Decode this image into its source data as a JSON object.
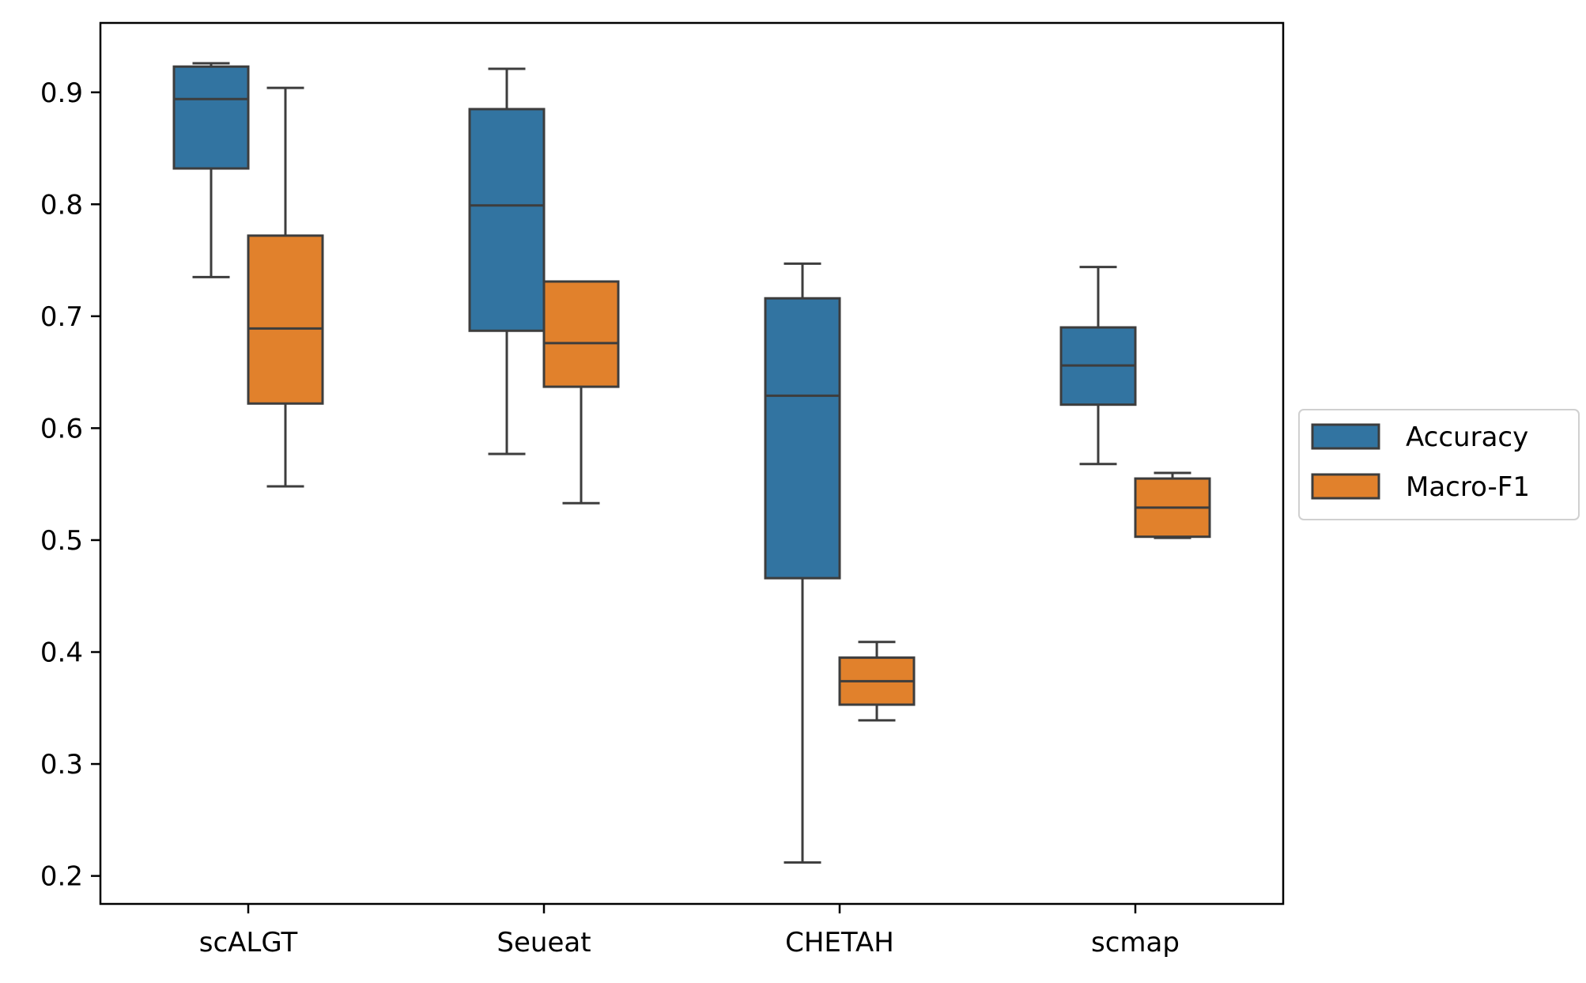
{
  "chart_data": {
    "type": "boxplot",
    "title": "",
    "xlabel": "",
    "ylabel": "",
    "ylim": [
      0.175,
      0.962
    ],
    "yticks": [
      0.2,
      0.3,
      0.4,
      0.5,
      0.6,
      0.7,
      0.8,
      0.9
    ],
    "ytick_labels": [
      "0.2",
      "0.3",
      "0.4",
      "0.5",
      "0.6",
      "0.7",
      "0.8",
      "0.9"
    ],
    "categories": [
      "scALGT",
      "Seueat",
      "CHETAH",
      "scmap"
    ],
    "grid": false,
    "legend_position": "center-right, outside plot",
    "series": [
      {
        "name": "Accuracy",
        "color": "#3274a1",
        "boxes": [
          {
            "whisker_low": 0.735,
            "q1": 0.832,
            "median": 0.894,
            "q3": 0.923,
            "whisker_high": 0.926
          },
          {
            "whisker_low": 0.577,
            "q1": 0.687,
            "median": 0.799,
            "q3": 0.885,
            "whisker_high": 0.921
          },
          {
            "whisker_low": 0.212,
            "q1": 0.466,
            "median": 0.629,
            "q3": 0.716,
            "whisker_high": 0.747
          },
          {
            "whisker_low": 0.568,
            "q1": 0.621,
            "median": 0.656,
            "q3": 0.69,
            "whisker_high": 0.744
          }
        ]
      },
      {
        "name": "Macro-F1",
        "color": "#e1812c",
        "boxes": [
          {
            "whisker_low": 0.548,
            "q1": 0.622,
            "median": 0.689,
            "q3": 0.772,
            "whisker_high": 0.904
          },
          {
            "whisker_low": 0.533,
            "q1": 0.637,
            "median": 0.676,
            "q3": 0.731,
            "whisker_high": 0.731
          },
          {
            "whisker_low": 0.339,
            "q1": 0.353,
            "median": 0.374,
            "q3": 0.395,
            "whisker_high": 0.409
          },
          {
            "whisker_low": 0.502,
            "q1": 0.503,
            "median": 0.529,
            "q3": 0.555,
            "whisker_high": 0.56
          }
        ]
      }
    ],
    "edge_color": "#3d3d3d",
    "axis_color": "#000000"
  }
}
